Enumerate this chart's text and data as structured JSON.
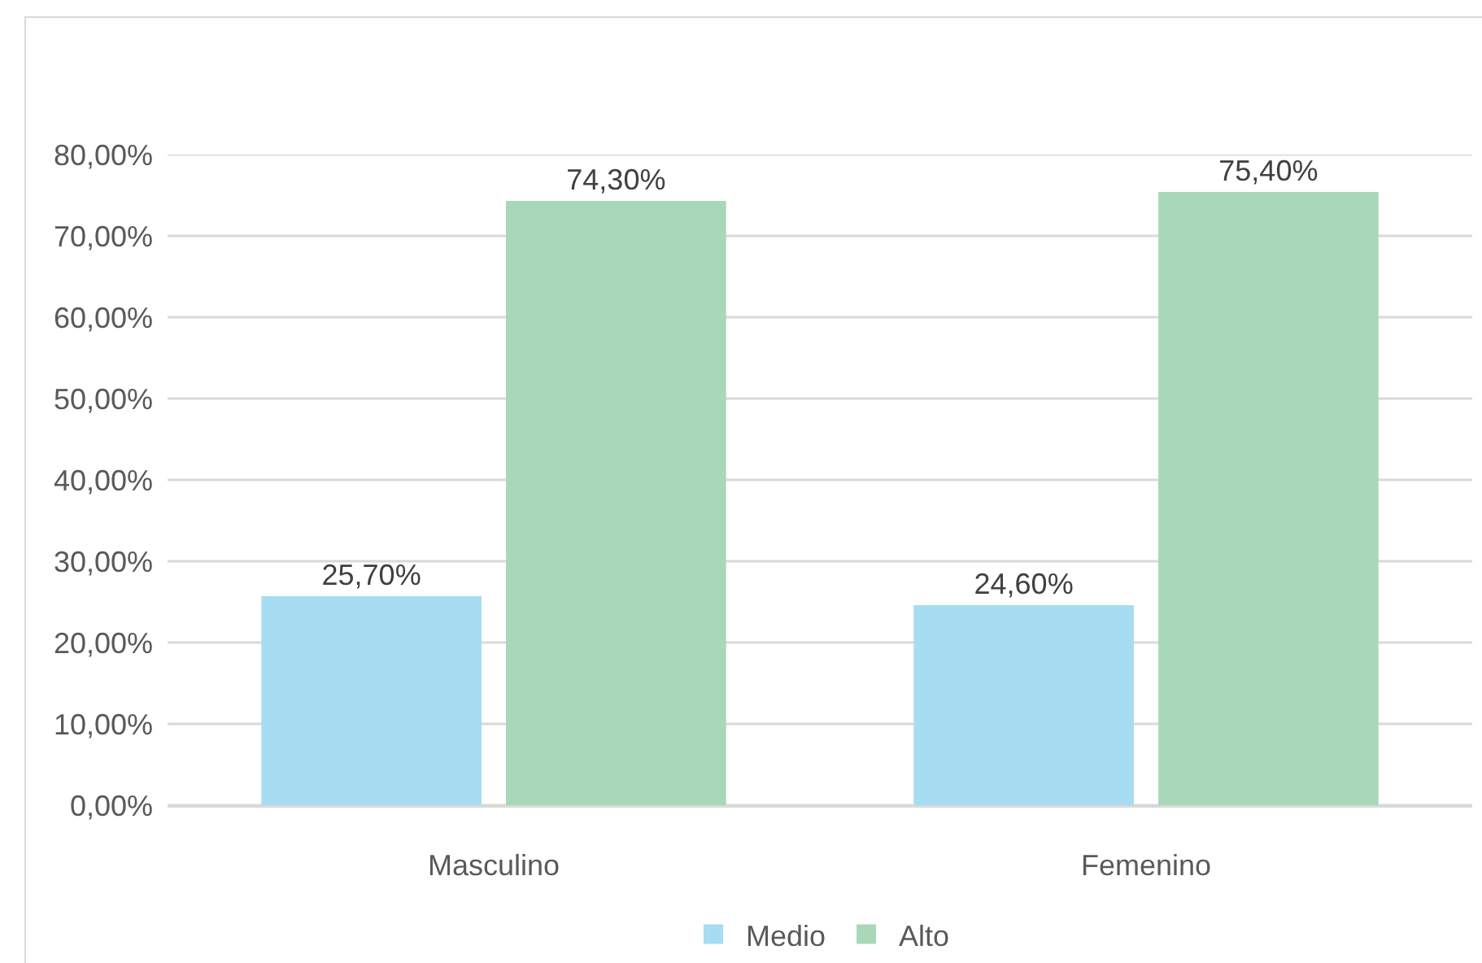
{
  "chart_data": {
    "type": "bar",
    "categories": [
      "Masculino",
      "Femenino"
    ],
    "series": [
      {
        "name": "Medio",
        "color": "#a6ddf2",
        "values": [
          25.7,
          24.6
        ],
        "value_labels": [
          "25,70%",
          "24,60%"
        ]
      },
      {
        "name": "Alto",
        "color": "#a9d8b8",
        "values": [
          74.3,
          75.4
        ],
        "value_labels": [
          "74,30%",
          "75,40%"
        ]
      }
    ],
    "ylim": [
      0,
      80
    ],
    "yticks": [
      {
        "value": 0,
        "label": "0,00%"
      },
      {
        "value": 10,
        "label": "10,00%"
      },
      {
        "value": 20,
        "label": "20,00%"
      },
      {
        "value": 30,
        "label": "30,00%"
      },
      {
        "value": 40,
        "label": "40,00%"
      },
      {
        "value": 50,
        "label": "50,00%"
      },
      {
        "value": 60,
        "label": "60,00%"
      },
      {
        "value": 70,
        "label": "70,00%"
      },
      {
        "value": 80,
        "label": "80,00%"
      }
    ],
    "grid": "y",
    "legend": "bottom"
  }
}
